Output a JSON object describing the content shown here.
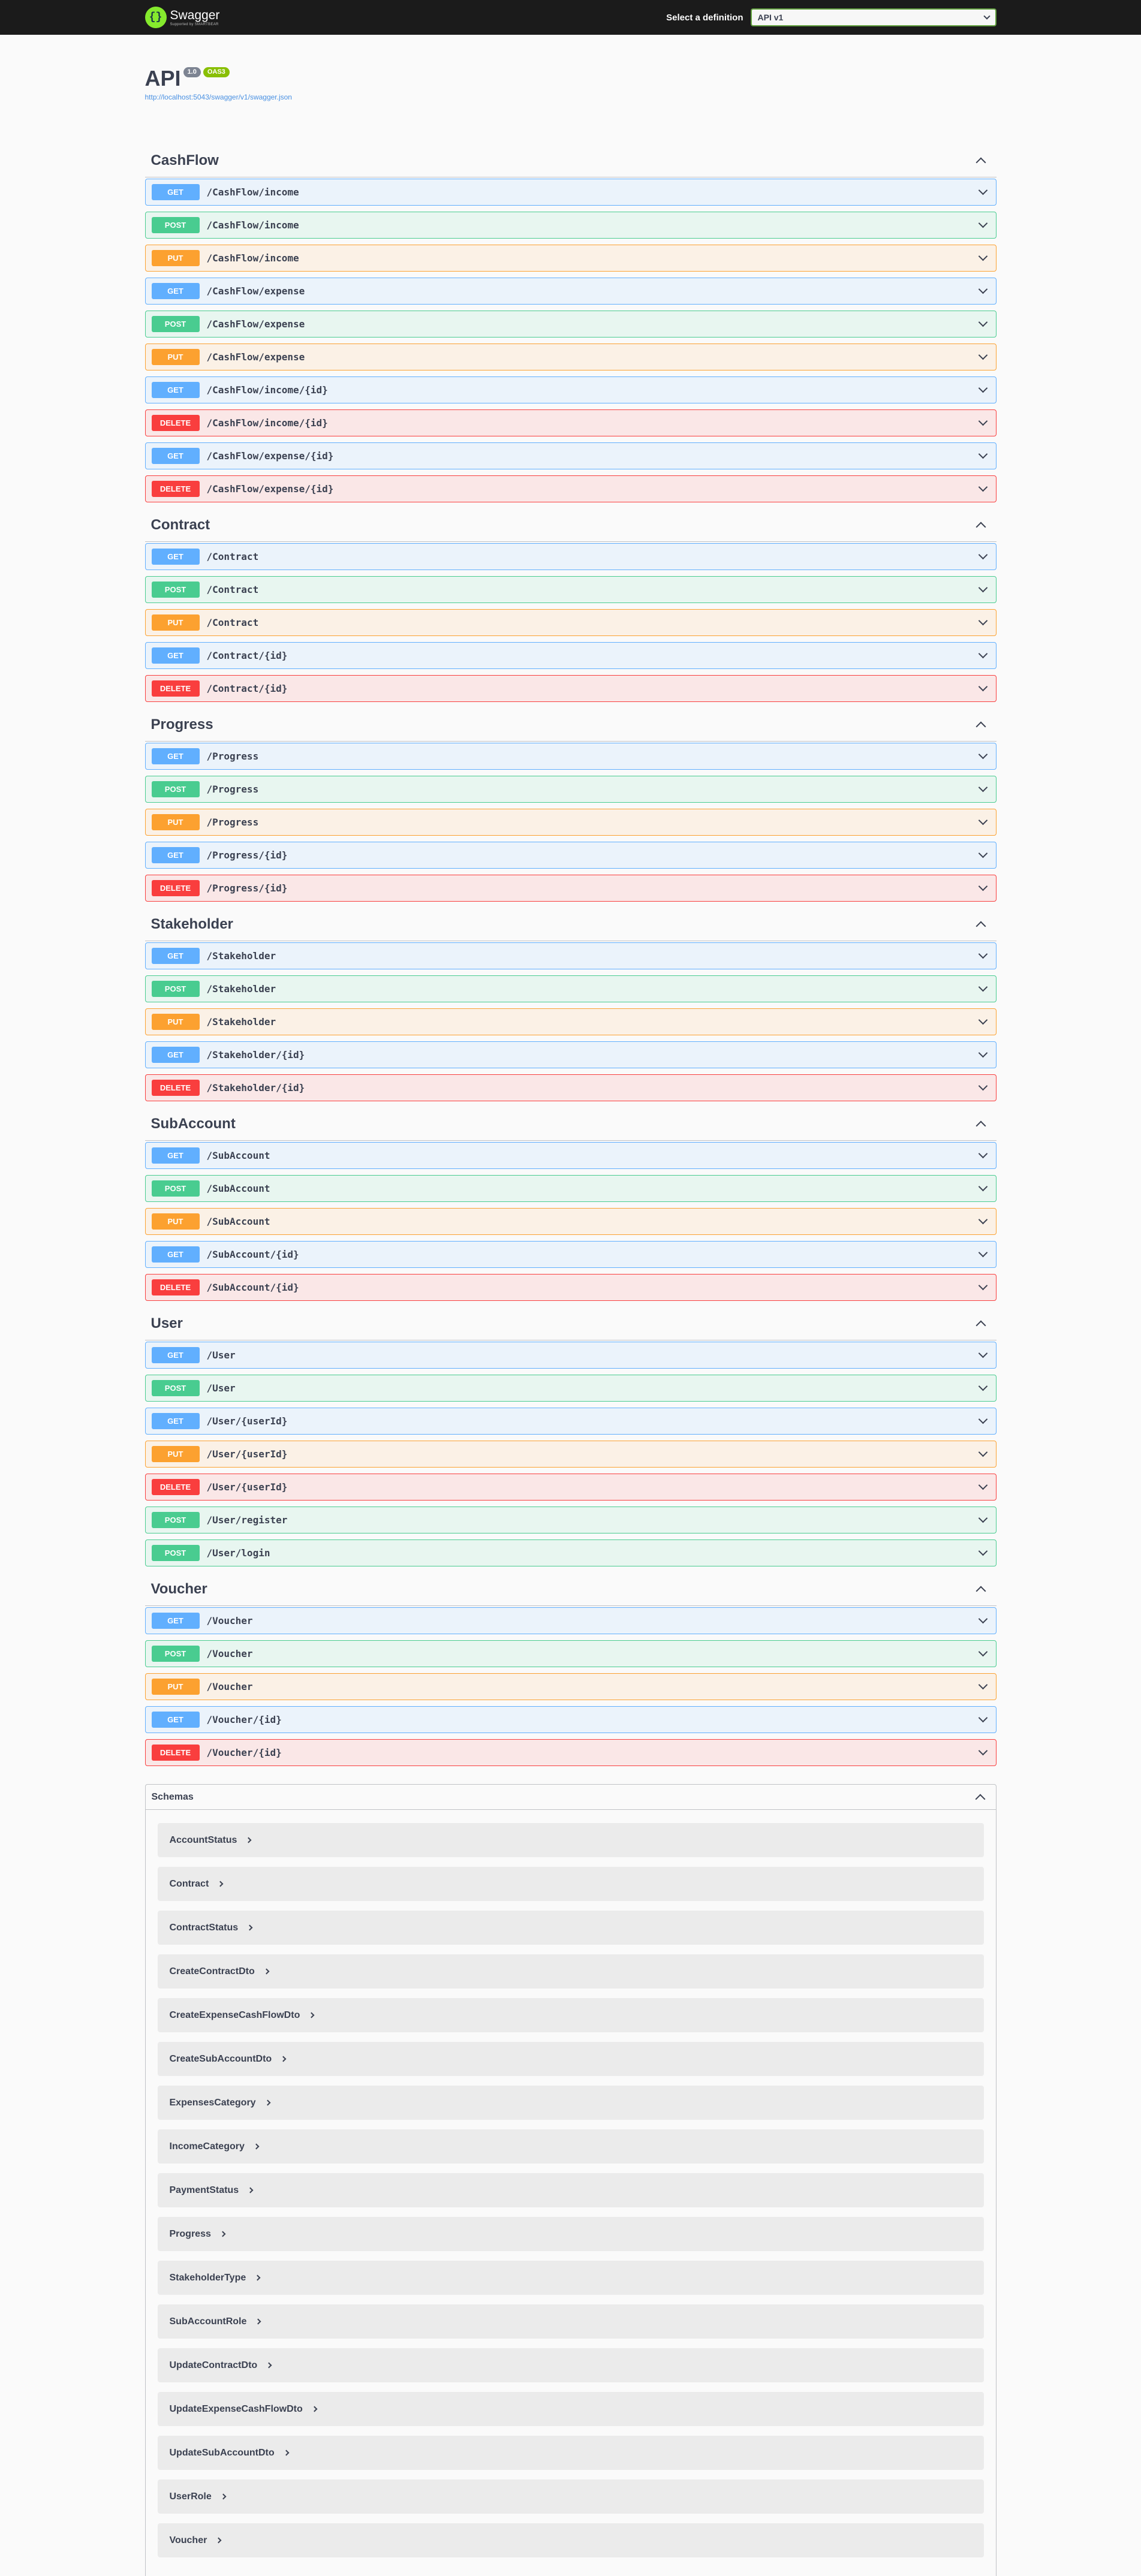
{
  "header": {
    "brand": "Swagger",
    "brand_sub": "Supported by SMARTBEAR",
    "brand_logo_glyph": "{}",
    "definition_label": "Select a definition",
    "definition_value": "API v1"
  },
  "info": {
    "title": "API",
    "version": "1.0",
    "oas": "OAS3",
    "url": "http://localhost:5043/swagger/v1/swagger.json"
  },
  "tags": [
    {
      "name": "CashFlow",
      "ops": [
        {
          "method": "GET",
          "path": "/CashFlow/income"
        },
        {
          "method": "POST",
          "path": "/CashFlow/income"
        },
        {
          "method": "PUT",
          "path": "/CashFlow/income"
        },
        {
          "method": "GET",
          "path": "/CashFlow/expense"
        },
        {
          "method": "POST",
          "path": "/CashFlow/expense"
        },
        {
          "method": "PUT",
          "path": "/CashFlow/expense"
        },
        {
          "method": "GET",
          "path": "/CashFlow/income/{id}"
        },
        {
          "method": "DELETE",
          "path": "/CashFlow/income/{id}"
        },
        {
          "method": "GET",
          "path": "/CashFlow/expense/{id}"
        },
        {
          "method": "DELETE",
          "path": "/CashFlow/expense/{id}"
        }
      ]
    },
    {
      "name": "Contract",
      "ops": [
        {
          "method": "GET",
          "path": "/Contract"
        },
        {
          "method": "POST",
          "path": "/Contract"
        },
        {
          "method": "PUT",
          "path": "/Contract"
        },
        {
          "method": "GET",
          "path": "/Contract/{id}"
        },
        {
          "method": "DELETE",
          "path": "/Contract/{id}"
        }
      ]
    },
    {
      "name": "Progress",
      "ops": [
        {
          "method": "GET",
          "path": "/Progress"
        },
        {
          "method": "POST",
          "path": "/Progress"
        },
        {
          "method": "PUT",
          "path": "/Progress"
        },
        {
          "method": "GET",
          "path": "/Progress/{id}"
        },
        {
          "method": "DELETE",
          "path": "/Progress/{id}"
        }
      ]
    },
    {
      "name": "Stakeholder",
      "ops": [
        {
          "method": "GET",
          "path": "/Stakeholder"
        },
        {
          "method": "POST",
          "path": "/Stakeholder"
        },
        {
          "method": "PUT",
          "path": "/Stakeholder"
        },
        {
          "method": "GET",
          "path": "/Stakeholder/{id}"
        },
        {
          "method": "DELETE",
          "path": "/Stakeholder/{id}"
        }
      ]
    },
    {
      "name": "SubAccount",
      "ops": [
        {
          "method": "GET",
          "path": "/SubAccount"
        },
        {
          "method": "POST",
          "path": "/SubAccount"
        },
        {
          "method": "PUT",
          "path": "/SubAccount"
        },
        {
          "method": "GET",
          "path": "/SubAccount/{id}"
        },
        {
          "method": "DELETE",
          "path": "/SubAccount/{id}"
        }
      ]
    },
    {
      "name": "User",
      "ops": [
        {
          "method": "GET",
          "path": "/User"
        },
        {
          "method": "POST",
          "path": "/User"
        },
        {
          "method": "GET",
          "path": "/User/{userId}"
        },
        {
          "method": "PUT",
          "path": "/User/{userId}"
        },
        {
          "method": "DELETE",
          "path": "/User/{userId}"
        },
        {
          "method": "POST",
          "path": "/User/register"
        },
        {
          "method": "POST",
          "path": "/User/login"
        }
      ]
    },
    {
      "name": "Voucher",
      "ops": [
        {
          "method": "GET",
          "path": "/Voucher"
        },
        {
          "method": "POST",
          "path": "/Voucher"
        },
        {
          "method": "PUT",
          "path": "/Voucher"
        },
        {
          "method": "GET",
          "path": "/Voucher/{id}"
        },
        {
          "method": "DELETE",
          "path": "/Voucher/{id}"
        }
      ]
    }
  ],
  "schemas": {
    "title": "Schemas",
    "models": [
      "AccountStatus",
      "Contract",
      "ContractStatus",
      "CreateContractDto",
      "CreateExpenseCashFlowDto",
      "CreateSubAccountDto",
      "ExpensesCategory",
      "IncomeCategory",
      "PaymentStatus",
      "Progress",
      "StakeholderType",
      "SubAccountRole",
      "UpdateContractDto",
      "UpdateExpenseCashFlowDto",
      "UpdateSubAccountDto",
      "UserRole",
      "Voucher"
    ]
  },
  "colors": {
    "get": "#61affe",
    "post": "#49cc90",
    "put": "#fca130",
    "delete": "#f93e3e",
    "topbar": "#1b1b1b",
    "accent": "#85ea2d"
  }
}
